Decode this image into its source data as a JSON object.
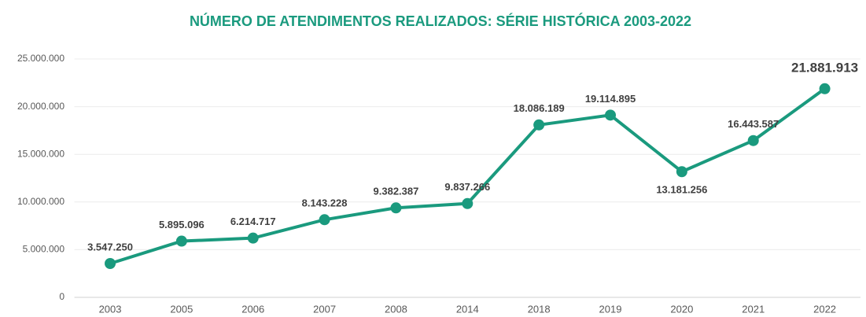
{
  "chart_data": {
    "type": "line",
    "title": "NÚMERO DE ATENDIMENTOS REALIZADOS: SÉRIE HISTÓRICA 2003-2022",
    "categories": [
      "2003",
      "2005",
      "2006",
      "2007",
      "2008",
      "2014",
      "2018",
      "2019",
      "2020",
      "2021",
      "2022"
    ],
    "values": [
      3547250,
      5895096,
      6214717,
      8143228,
      9382387,
      9837266,
      18086189,
      19114895,
      13181256,
      16443587,
      21881913
    ],
    "value_labels": [
      "3.547.250",
      "5.895.096",
      "6.214.717",
      "8.143.228",
      "9.382.387",
      "9.837.266",
      "18.086.189",
      "19.114.895",
      "13.181.256",
      "16.443.587",
      "21.881.913"
    ],
    "color": "#1a9a7e",
    "ylim": [
      0,
      25000000
    ],
    "yticks": [
      0,
      {
        "value": 5000000,
        "label": "5.000.000"
      },
      {
        "value": 10000000,
        "label": "10.000.000"
      },
      {
        "value": 15000000,
        "label": "15.000.000"
      },
      {
        "value": 20000000,
        "label": "20.000.000"
      },
      {
        "value": 25000000,
        "label": "25.000.000"
      }
    ],
    "grid": true
  }
}
